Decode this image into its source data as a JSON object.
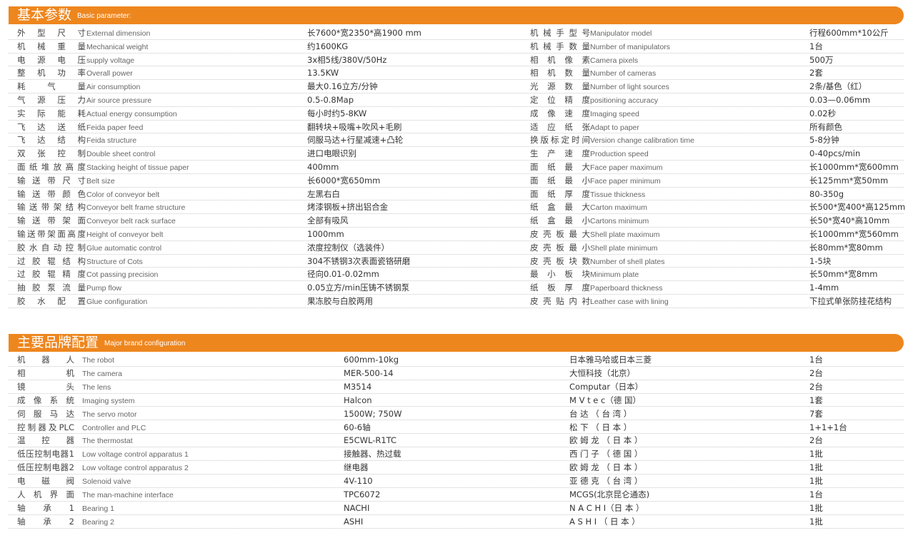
{
  "basic": {
    "title_cn": "基本参数",
    "title_en": "Basic parameter:",
    "left": [
      {
        "cn": "外型尺寸",
        "en": "External dimension",
        "value": "长7600*宽2350*高1900 mm"
      },
      {
        "cn": "机械重量",
        "en": "Mechanical weight",
        "value": "约1600KG"
      },
      {
        "cn": "电源电压",
        "en": "supply voltage",
        "value": "3x相5线/380V/50Hz"
      },
      {
        "cn": "整机功率",
        "en": "Overall power",
        "value": "13.5KW"
      },
      {
        "cn": "耗气量",
        "en": "Air consumption",
        "value": "最大0.16立方/分钟"
      },
      {
        "cn": "气源压力",
        "en": "Air source pressure",
        "value": "0.5-0.8Map"
      },
      {
        "cn": "实际能耗",
        "en": "Actual energy consumption",
        "value": "每小时约5-8KW"
      },
      {
        "cn": "飞达送纸",
        "en": "Feida paper feed",
        "value": "翻转块+吸嘴+吹风+毛刷"
      },
      {
        "cn": "飞达结构",
        "en": "Feida structure",
        "value": "伺服马达+行星减速+凸轮"
      },
      {
        "cn": "双张控制",
        "en": "Double sheet control",
        "value": "进口电眼识别"
      },
      {
        "cn": "面纸堆放高度",
        "en": "Stacking height of tissue paper",
        "value": "400mm"
      },
      {
        "cn": "输送带尺寸",
        "en": "Belt size",
        "value": "长6000*宽650mm"
      },
      {
        "cn": "输送带颜色",
        "en": "Color of conveyor belt",
        "value": "左黑右白"
      },
      {
        "cn": "输送带架结构",
        "en": "Conveyor belt frame structure",
        "value": "烤漆钢板+挤出铝合金"
      },
      {
        "cn": "输送带架面",
        "en": "Conveyor belt rack surface",
        "value": "全部有吸风"
      },
      {
        "cn": "输送带架面高度",
        "en": "Height of conveyor belt",
        "value": "1000mm"
      },
      {
        "cn": "胶水自动控制",
        "en": "Glue automatic control",
        "value": "浓度控制仪（选装件）"
      },
      {
        "cn": "过胶辊结构",
        "en": "Structure of Cots",
        "value": "304不锈钢3次表面瓷铬研磨"
      },
      {
        "cn": "过胶辊精度",
        "en": "Cot passing precision",
        "value": "径向0.01-0.02mm"
      },
      {
        "cn": "抽胶泵流量",
        "en": "Pump flow",
        "value": "0.05立方/min压铸不锈钢泵"
      },
      {
        "cn": "胶水配置",
        "en": "Glue configuration",
        "value": "果冻胶与白胶两用"
      }
    ],
    "right": [
      {
        "cn": "机械手型号",
        "en": "Manipulator model",
        "value": "行程600mm*10公斤"
      },
      {
        "cn": "机械手数量",
        "en": "Number of manipulators",
        "value": "1台"
      },
      {
        "cn": "相机像素",
        "en": "Camera pixels",
        "value": "500万"
      },
      {
        "cn": "相机数量",
        "en": "Number of cameras",
        "value": "2套"
      },
      {
        "cn": "光源数量",
        "en": "Number of light sources",
        "value": "2条/基色（红）"
      },
      {
        "cn": "定位精度",
        "en": "positioning accuracy",
        "value": "0.03—0.06mm"
      },
      {
        "cn": "成像速度",
        "en": "Imaging speed",
        "value": "0.02秒"
      },
      {
        "cn": "适应纸张",
        "en": "Adapt to paper",
        "value": "所有颜色"
      },
      {
        "cn": "换版标定时间",
        "en": "Version change calibration time",
        "value": "5-8分钟"
      },
      {
        "cn": "生产速度",
        "en": "Production speed",
        "value": "0-40pcs/min"
      },
      {
        "cn": "面纸最大",
        "en": "Face paper maximum",
        "value": "长1000mm*宽600mm"
      },
      {
        "cn": "面纸最小",
        "en": "Face paper minimum",
        "value": "长125mm*宽50mm"
      },
      {
        "cn": "面纸厚度",
        "en": "Tissue thickness",
        "value": "80-350g"
      },
      {
        "cn": "纸盒最大",
        "en": "Carton maximum",
        "value": "长500*宽400*高125mm"
      },
      {
        "cn": "纸盒最小",
        "en": "Cartons minimum",
        "value": "长50*宽40*高10mm"
      },
      {
        "cn": "皮壳板最大",
        "en": "Shell plate maximum",
        "value": "长1000mm*宽560mm"
      },
      {
        "cn": "皮壳板最小",
        "en": "Shell plate minimum",
        "value": "长80mm*宽80mm"
      },
      {
        "cn": "皮壳板块数",
        "en": "Number of shell plates",
        "value": "1-5块"
      },
      {
        "cn": "最小板块",
        "en": "Minimum plate",
        "value": "长50mm*宽8mm"
      },
      {
        "cn": "纸板厚度",
        "en": "Paperboard thickness",
        "value": "1-4mm"
      },
      {
        "cn": "皮壳贴内衬",
        "en": "Leather case with lining",
        "value": "下拉式单张防挂花结构"
      }
    ]
  },
  "brand": {
    "title_cn": "主要品牌配置",
    "title_en": "Major brand configuration",
    "rows": [
      {
        "cn": "机器人",
        "en": "The robot",
        "model": "600mm-10kg",
        "brand": "日本雅马哈或日本三菱",
        "qty": "1台"
      },
      {
        "cn": "相机",
        "en": "The camera",
        "model": "MER-500-14",
        "brand": "大恒科技（北京）",
        "qty": "2台"
      },
      {
        "cn": "镜头",
        "en": "The lens",
        "model": "M3514",
        "brand": "Computar（日本）",
        "qty": "2台"
      },
      {
        "cn": "成像系统",
        "en": "Imaging system",
        "model": "Halcon",
        "brand": "M V t e c（德 国）",
        "qty": "1套"
      },
      {
        "cn": "伺服马达",
        "en": "The servo motor",
        "model": "1500W; 750W",
        "brand": "台 达 （ 台 湾 ）",
        "qty": "7套"
      },
      {
        "cn": "控制器及PLC",
        "en": "Controller and PLC",
        "model": "60-6轴",
        "brand": "松 下 （ 日 本 ）",
        "qty": "1+1+1台"
      },
      {
        "cn": "温控器",
        "en": "The thermostat",
        "model": "E5CWL-R1TC",
        "brand": "欧 姆 龙 （ 日 本 ）",
        "qty": "2台"
      },
      {
        "cn": "低压控制电器1",
        "en": "Low voltage control apparatus 1",
        "model": "接触器、热过载",
        "brand": "西 门 子 （ 德 国 ）",
        "qty": "1批"
      },
      {
        "cn": "低压控制电器2",
        "en": "Low voltage control apparatus 2",
        "model": "继电器",
        "brand": "欧 姆 龙 （ 日 本 ）",
        "qty": "1批"
      },
      {
        "cn": "电磁阀",
        "en": "Solenoid valve",
        "model": "4V-110",
        "brand": "亚 德 克 （ 台 湾 ）",
        "qty": "1批"
      },
      {
        "cn": "人机界面",
        "en": "The man-machine interface",
        "model": "TPC6072",
        "brand": "MCGS(北京昆仑通态)",
        "qty": "1台"
      },
      {
        "cn": "轴承1",
        "en": "Bearing 1",
        "model": "NACHI",
        "brand": "N A C H I（日 本 ）",
        "qty": "1批"
      },
      {
        "cn": "轴承2",
        "en": "Bearing 2",
        "model": "ASHI",
        "brand": "A S H I （ 日 本 ）",
        "qty": "1批"
      }
    ]
  },
  "colors": {
    "accent": "#ee861e"
  }
}
